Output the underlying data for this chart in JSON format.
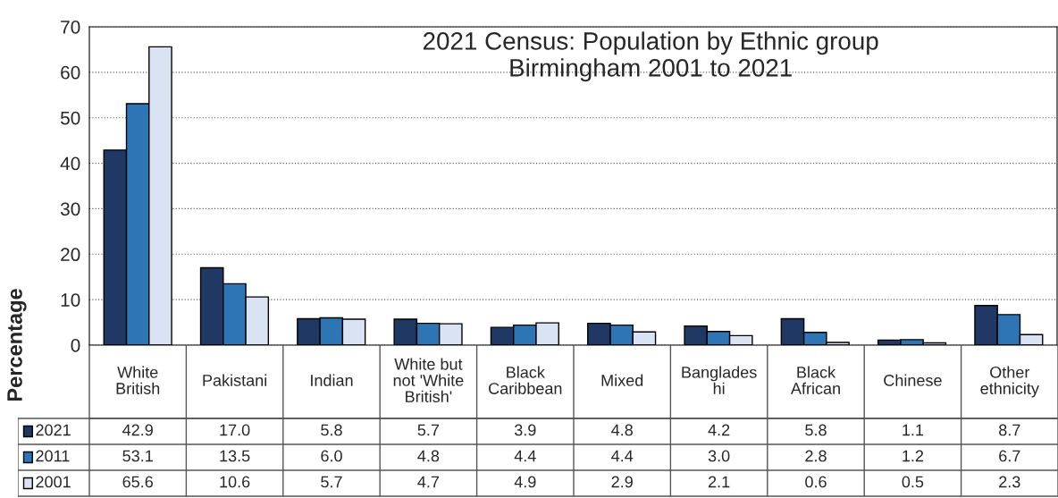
{
  "chart_data": {
    "type": "bar",
    "title": "2021 Census: Population by Ethnic group\nBirmingham 2001 to 2021",
    "ylabel": "Percentage",
    "categories": [
      "White\nBritish",
      "Pakistani",
      "Indian",
      "White but\nnot 'White\nBritish'",
      "Black\nCaribbean",
      "Mixed",
      "Banglades\nhi",
      "Black\nAfrican",
      "Chinese",
      "Other\nethnicity"
    ],
    "series": [
      {
        "name": "2021",
        "color": "#1f3864",
        "values": [
          42.9,
          17.0,
          5.8,
          5.7,
          3.9,
          4.8,
          4.2,
          5.8,
          1.1,
          8.7
        ],
        "value_labels": [
          "42.9",
          "17.0",
          "5.8",
          "5.7",
          "3.9",
          "4.8",
          "4.2",
          "5.8",
          "1.1",
          "8.7"
        ]
      },
      {
        "name": "2011",
        "color": "#2e75b6",
        "values": [
          53.1,
          13.5,
          6.0,
          4.8,
          4.4,
          4.4,
          3.0,
          2.8,
          1.2,
          6.7
        ],
        "value_labels": [
          "53.1",
          "13.5",
          "6.0",
          "4.8",
          "4.4",
          "4.4",
          "3.0",
          "2.8",
          "1.2",
          "6.7"
        ]
      },
      {
        "name": "2001",
        "color": "#dae3f3",
        "values": [
          65.6,
          10.6,
          5.7,
          4.7,
          4.9,
          2.9,
          2.1,
          0.6,
          0.5,
          2.3
        ],
        "value_labels": [
          "65.6",
          "10.6",
          "5.7",
          "4.7",
          "4.9",
          "2.9",
          "2.1",
          "0.6",
          "0.5",
          "2.3"
        ]
      }
    ],
    "ylim": [
      0,
      70
    ],
    "yticks": [
      0,
      10,
      20,
      30,
      40,
      50,
      60,
      70
    ],
    "grid": "y",
    "legend": "bottom left"
  }
}
